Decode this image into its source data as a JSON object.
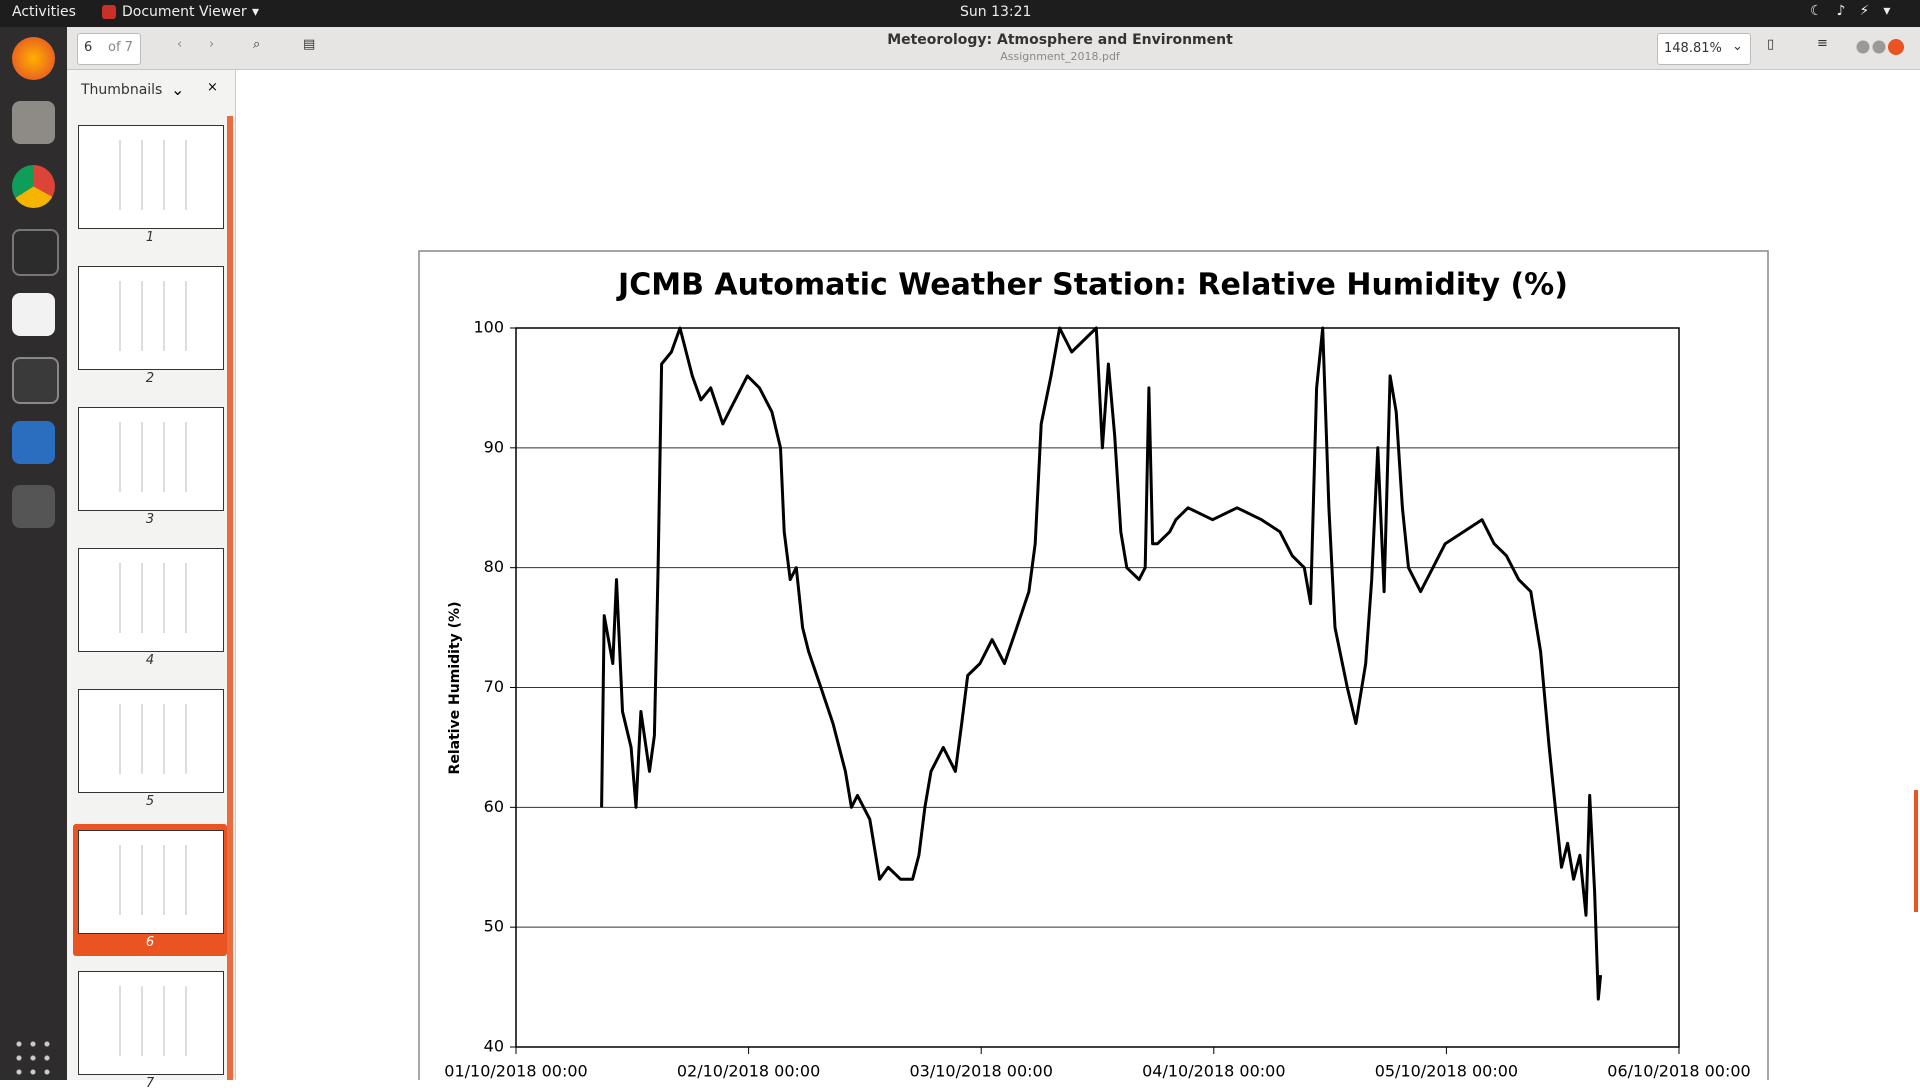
{
  "ui": {
    "topbar": {
      "activities": "Activities",
      "app": "Document Viewer",
      "clock": "Sun 13:21"
    },
    "toolbar": {
      "page": "6",
      "page_count": "of 7",
      "title": "Meteorology: Atmosphere and Environment",
      "file": "Assignment_2018.pdf",
      "zoom": "148.81%"
    },
    "sidebar": {
      "label": "Thumbnails",
      "pages": [
        "1",
        "2",
        "3",
        "4",
        "5",
        "6",
        "7"
      ]
    }
  },
  "chart_data": {
    "type": "line",
    "title": "JCMB Automatic Weather Station: Relative Humidity (%)",
    "y_label": "Relative Humidity (%)",
    "color": "#000000",
    "grid": true,
    "xlim": [
      0,
      5
    ],
    "xticks": [
      {
        "value": 0,
        "label": "01/10/2018 00:00"
      },
      {
        "value": 1,
        "label": "02/10/2018 00:00"
      },
      {
        "value": 2,
        "label": "03/10/2018 00:00"
      },
      {
        "value": 3,
        "label": "04/10/2018 00:00"
      },
      {
        "value": 4,
        "label": "05/10/2018 00:00"
      },
      {
        "value": 5,
        "label": "06/10/2018 00:00"
      }
    ],
    "ylim": [
      40,
      100
    ],
    "yticks": [
      40,
      50,
      60,
      70,
      80,
      90,
      100
    ],
    "x": [
      0.368,
      0.379,
      0.416,
      0.432,
      0.458,
      0.495,
      0.516,
      0.537,
      0.574,
      0.595,
      0.611,
      0.626,
      0.668,
      0.705,
      0.758,
      0.795,
      0.837,
      0.889,
      0.942,
      0.995,
      1.047,
      1.1,
      1.137,
      1.153,
      1.179,
      1.205,
      1.232,
      1.258,
      1.311,
      1.363,
      1.416,
      1.442,
      1.468,
      1.521,
      1.563,
      1.6,
      1.653,
      1.705,
      1.732,
      1.758,
      1.784,
      1.837,
      1.889,
      1.916,
      1.942,
      1.995,
      2.047,
      2.1,
      2.153,
      2.205,
      2.232,
      2.258,
      2.3,
      2.337,
      2.389,
      2.442,
      2.495,
      2.521,
      2.547,
      2.574,
      2.6,
      2.626,
      2.679,
      2.705,
      2.721,
      2.737,
      2.758,
      2.811,
      2.837,
      2.889,
      2.995,
      3.1,
      3.205,
      3.284,
      3.337,
      3.389,
      3.416,
      3.442,
      3.468,
      3.495,
      3.521,
      3.574,
      3.611,
      3.653,
      3.679,
      3.705,
      3.732,
      3.758,
      3.784,
      3.811,
      3.837,
      3.889,
      3.942,
      3.995,
      4.074,
      4.153,
      4.205,
      4.258,
      4.311,
      4.363,
      4.405,
      4.442,
      4.468,
      4.495,
      4.521,
      4.547,
      4.574,
      4.6,
      4.616,
      4.637,
      4.653,
      4.663
    ],
    "values": [
      60,
      76,
      72,
      79,
      68,
      65,
      60,
      68,
      63,
      66,
      80,
      97,
      98,
      100,
      96,
      94,
      95,
      92,
      94,
      96,
      95,
      93,
      90,
      83,
      79,
      80,
      75,
      73,
      70,
      67,
      63,
      60,
      61,
      59,
      54,
      55,
      54,
      54,
      56,
      60,
      63,
      65,
      63,
      67,
      71,
      72,
      74,
      72,
      75,
      78,
      82,
      92,
      96,
      100,
      98,
      99,
      100,
      90,
      97,
      91,
      83,
      80,
      79,
      80,
      95,
      82,
      82,
      83,
      84,
      85,
      84,
      85,
      84,
      83,
      81,
      80,
      77,
      95,
      100,
      85,
      75,
      70,
      67,
      72,
      79,
      90,
      78,
      96,
      93,
      85,
      80,
      78,
      80,
      82,
      83,
      84,
      82,
      81,
      79,
      78,
      73,
      65,
      60,
      55,
      57,
      54,
      56,
      51,
      61,
      53,
      44,
      46
    ]
  }
}
